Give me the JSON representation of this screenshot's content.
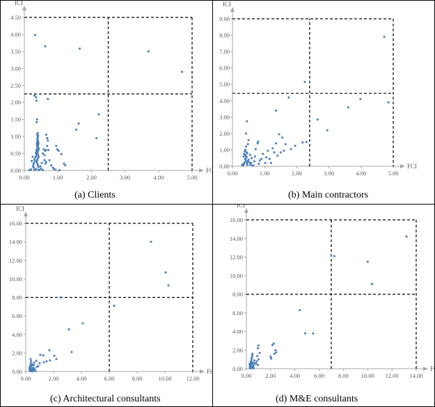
{
  "figure": {
    "captions": [
      "(a)  Clients",
      "(b)  Main contractors",
      "(c) Architectural consultants",
      "(d)  M&E consultants"
    ]
  },
  "chart_data": [
    {
      "type": "scatter",
      "title": "",
      "caption": "(a)  Clients",
      "xlabel": "FCI",
      "ylabel": "ICI",
      "xlim": [
        0,
        5
      ],
      "ylim": [
        0,
        4.5
      ],
      "x_ticks": [
        "0.00",
        "1.00",
        "2.00",
        "3.00",
        "4.00",
        "5.00"
      ],
      "y_ticks": [
        "0.00",
        "0.50",
        "1.00",
        "1.50",
        "2.00",
        "2.50",
        "3.00",
        "3.50",
        "4.00",
        "4.50"
      ],
      "thresholds": {
        "x": 2.5,
        "y": 2.25
      },
      "grid": false,
      "marker_color": "#4a7ebb",
      "points": [
        [
          0.32,
          3.98
        ],
        [
          0.62,
          3.65
        ],
        [
          1.65,
          3.58
        ],
        [
          3.7,
          3.5
        ],
        [
          4.7,
          2.9
        ],
        [
          0.3,
          2.2
        ],
        [
          0.35,
          2.15
        ],
        [
          0.36,
          2.05
        ],
        [
          0.38,
          1.5
        ],
        [
          0.37,
          1.42
        ],
        [
          0.4,
          1.1
        ],
        [
          0.38,
          1.05
        ],
        [
          0.39,
          0.95
        ],
        [
          0.4,
          0.9
        ],
        [
          0.41,
          0.85
        ],
        [
          0.42,
          0.8
        ],
        [
          0.41,
          0.75
        ],
        [
          0.4,
          0.7
        ],
        [
          0.43,
          0.65
        ],
        [
          0.42,
          0.6
        ],
        [
          0.4,
          0.55
        ],
        [
          0.39,
          0.5
        ],
        [
          0.41,
          0.45
        ],
        [
          0.43,
          0.4
        ],
        [
          0.4,
          0.35
        ],
        [
          0.38,
          0.3
        ],
        [
          0.37,
          0.25
        ],
        [
          0.39,
          0.2
        ],
        [
          0.4,
          0.15
        ],
        [
          0.42,
          0.1
        ],
        [
          0.35,
          0.05
        ],
        [
          0.33,
          0.02
        ],
        [
          0.3,
          0.01
        ],
        [
          0.28,
          0.08
        ],
        [
          0.26,
          0.12
        ],
        [
          0.27,
          0.18
        ],
        [
          0.29,
          0.22
        ],
        [
          0.31,
          0.28
        ],
        [
          0.3,
          0.32
        ],
        [
          0.33,
          0.38
        ],
        [
          0.35,
          0.42
        ],
        [
          0.36,
          0.48
        ],
        [
          0.34,
          0.52
        ],
        [
          0.36,
          0.58
        ],
        [
          0.37,
          0.62
        ],
        [
          0.39,
          0.68
        ],
        [
          0.38,
          0.72
        ],
        [
          0.37,
          0.78
        ],
        [
          0.38,
          0.82
        ],
        [
          0.39,
          0.88
        ],
        [
          0.4,
          0.98
        ],
        [
          0.41,
          1.02
        ],
        [
          0.42,
          0.01
        ],
        [
          0.45,
          0.02
        ],
        [
          0.5,
          0.05
        ],
        [
          0.55,
          0.01
        ],
        [
          0.48,
          0.12
        ],
        [
          0.52,
          0.22
        ],
        [
          0.6,
          0.3
        ],
        [
          0.65,
          0.25
        ],
        [
          0.63,
          0.2
        ],
        [
          0.55,
          0.5
        ],
        [
          0.6,
          0.45
        ],
        [
          0.62,
          0.58
        ],
        [
          0.58,
          0.62
        ],
        [
          0.65,
          0.6
        ],
        [
          0.68,
          0.72
        ],
        [
          0.7,
          0.88
        ],
        [
          0.65,
          1.05
        ],
        [
          0.68,
          0.95
        ],
        [
          0.7,
          2.1
        ],
        [
          0.72,
          0.6
        ],
        [
          0.75,
          0.3
        ],
        [
          0.8,
          0.15
        ],
        [
          0.85,
          0.08
        ],
        [
          0.95,
          0.72
        ],
        [
          0.98,
          0.62
        ],
        [
          1.02,
          0.58
        ],
        [
          1.1,
          0.48
        ],
        [
          1.18,
          0.2
        ],
        [
          1.22,
          0.15
        ],
        [
          0.88,
          0.05
        ],
        [
          0.93,
          0.02
        ],
        [
          1.05,
          0.01
        ],
        [
          1.55,
          1.2
        ],
        [
          1.62,
          1.38
        ],
        [
          2.15,
          0.95
        ],
        [
          2.22,
          1.65
        ],
        [
          0.15,
          0.01
        ],
        [
          0.2,
          0.03
        ],
        [
          0.22,
          0.28
        ],
        [
          0.25,
          0.4
        ]
      ]
    },
    {
      "type": "scatter",
      "title": "",
      "caption": "(b)  Main contractors",
      "xlabel": "FCI",
      "ylabel": "ICI",
      "xlim": [
        0,
        5
      ],
      "ylim": [
        0,
        9
      ],
      "x_ticks": [
        "0.00",
        "1.00",
        "2.00",
        "3.00",
        "4.00",
        "5.00"
      ],
      "y_ticks": [
        "0.00",
        "1.00",
        "2.00",
        "3.00",
        "4.00",
        "5.00",
        "6.00",
        "7.00",
        "8.00",
        "9.00"
      ],
      "thresholds": {
        "x": 2.4,
        "y": 4.45
      },
      "grid": false,
      "marker_color": "#4a7ebb",
      "points": [
        [
          4.72,
          7.9
        ],
        [
          2.25,
          5.15
        ],
        [
          4.85,
          3.9
        ],
        [
          3.98,
          4.1
        ],
        [
          3.6,
          3.6
        ],
        [
          2.65,
          2.85
        ],
        [
          2.95,
          2.2
        ],
        [
          1.75,
          4.2
        ],
        [
          1.55,
          1.75
        ],
        [
          1.65,
          1.35
        ],
        [
          1.82,
          1.05
        ],
        [
          1.95,
          1.25
        ],
        [
          2.18,
          1.45
        ],
        [
          2.3,
          1.48
        ],
        [
          1.35,
          3.4
        ],
        [
          1.45,
          1.95
        ],
        [
          1.35,
          1.4
        ],
        [
          1.25,
          1.1
        ],
        [
          1.3,
          0.85
        ],
        [
          1.4,
          0.65
        ],
        [
          1.15,
          0.45
        ],
        [
          1.2,
          0.2
        ],
        [
          1.05,
          0.55
        ],
        [
          1.1,
          0.95
        ],
        [
          0.95,
          0.75
        ],
        [
          0.9,
          0.45
        ],
        [
          0.85,
          0.35
        ],
        [
          0.82,
          0.15
        ],
        [
          0.78,
          1.4
        ],
        [
          0.8,
          1.5
        ],
        [
          0.72,
          1.05
        ],
        [
          0.7,
          0.6
        ],
        [
          0.68,
          0.3
        ],
        [
          0.65,
          0.05
        ],
        [
          0.45,
          2.75
        ],
        [
          0.42,
          2.0
        ],
        [
          0.5,
          1.6
        ],
        [
          0.48,
          1.35
        ],
        [
          0.42,
          1.2
        ],
        [
          0.4,
          1.0
        ],
        [
          0.38,
          0.9
        ],
        [
          0.36,
          0.75
        ],
        [
          0.35,
          0.6
        ],
        [
          0.4,
          0.45
        ],
        [
          0.42,
          0.35
        ],
        [
          0.38,
          0.25
        ],
        [
          0.36,
          0.15
        ],
        [
          0.34,
          0.08
        ],
        [
          0.32,
          0.05
        ],
        [
          0.3,
          0.1
        ],
        [
          0.45,
          0.2
        ],
        [
          0.47,
          0.3
        ],
        [
          0.44,
          0.55
        ],
        [
          0.46,
          0.8
        ],
        [
          0.5,
          0.4
        ],
        [
          0.52,
          0.25
        ],
        [
          0.55,
          0.1
        ],
        [
          0.55,
          0.7
        ],
        [
          0.6,
          0.5
        ],
        [
          0.58,
          0.2
        ],
        [
          0.62,
          0.05
        ],
        [
          0.42,
          0.6
        ],
        [
          0.4,
          0.7
        ],
        [
          0.44,
          0.85
        ],
        [
          0.46,
          0.1
        ],
        [
          1.02,
          0.2
        ],
        [
          1.5,
          0.85
        ],
        [
          1.6,
          0.95
        ]
      ]
    },
    {
      "type": "scatter",
      "title": "",
      "caption": "(c) Architectural consultants",
      "xlabel": "FCI",
      "ylabel": "ICI",
      "xlim": [
        0,
        12
      ],
      "ylim": [
        0,
        16
      ],
      "x_ticks": [
        "0.00",
        "2.00",
        "4.00",
        "6.00",
        "8.00",
        "10.00",
        "12.00"
      ],
      "y_ticks": [
        "0.00",
        "2.00",
        "4.00",
        "6.00",
        "8.00",
        "10.00",
        "12.00",
        "14.00",
        "16.00"
      ],
      "thresholds": {
        "x": 6.0,
        "y": 8.0
      },
      "grid": false,
      "marker_color": "#4a7ebb",
      "points": [
        [
          9.0,
          14.0
        ],
        [
          10.05,
          10.7
        ],
        [
          10.25,
          9.3
        ],
        [
          6.35,
          7.1
        ],
        [
          2.5,
          8.0
        ],
        [
          4.1,
          5.2
        ],
        [
          3.1,
          4.55
        ],
        [
          3.3,
          2.1
        ],
        [
          1.7,
          2.3
        ],
        [
          2.05,
          1.7
        ],
        [
          2.2,
          1.35
        ],
        [
          1.75,
          1.2
        ],
        [
          1.5,
          1.1
        ],
        [
          1.25,
          1.75
        ],
        [
          1.3,
          1.0
        ],
        [
          1.05,
          1.8
        ],
        [
          1.0,
          0.9
        ],
        [
          0.9,
          0.6
        ],
        [
          0.8,
          0.5
        ],
        [
          0.75,
          1.15
        ],
        [
          0.6,
          0.95
        ],
        [
          0.55,
          0.4
        ],
        [
          0.5,
          0.25
        ],
        [
          0.45,
          0.15
        ],
        [
          0.4,
          0.05
        ],
        [
          0.35,
          1.35
        ],
        [
          0.38,
          1.1
        ],
        [
          0.36,
          0.85
        ],
        [
          0.34,
          0.7
        ],
        [
          0.32,
          0.55
        ],
        [
          0.3,
          0.45
        ],
        [
          0.33,
          0.3
        ],
        [
          0.35,
          0.2
        ],
        [
          0.31,
          0.1
        ],
        [
          0.29,
          0.05
        ],
        [
          0.42,
          0.6
        ],
        [
          0.44,
          0.35
        ],
        [
          0.46,
          0.75
        ],
        [
          0.48,
          0.02
        ],
        [
          0.52,
          0.12
        ],
        [
          0.58,
          0.7
        ],
        [
          0.62,
          0.3
        ],
        [
          0.66,
          0.15
        ],
        [
          0.7,
          0.05
        ],
        [
          0.28,
          0.2
        ],
        [
          0.27,
          0.4
        ]
      ]
    },
    {
      "type": "scatter",
      "title": "",
      "caption": "(d)  M&E consultants",
      "xlabel": "FCI",
      "ylabel": "ICI",
      "xlim": [
        0,
        14
      ],
      "ylim": [
        0,
        16
      ],
      "x_ticks": [
        "0.00",
        "2.00",
        "4.00",
        "6.00",
        "8.00",
        "10.00",
        "12.00",
        "14.00"
      ],
      "y_ticks": [
        "0.00",
        "2.00",
        "4.00",
        "6.00",
        "8.00",
        "10.00",
        "12.00",
        "14.00",
        "16.00"
      ],
      "thresholds": {
        "x": 7.0,
        "y": 8.0
      },
      "grid": false,
      "marker_color": "#4a7ebb",
      "points": [
        [
          13.2,
          14.2
        ],
        [
          7.25,
          12.1
        ],
        [
          10.0,
          11.5
        ],
        [
          10.35,
          9.1
        ],
        [
          4.4,
          6.3
        ],
        [
          4.85,
          3.8
        ],
        [
          5.5,
          3.8
        ],
        [
          2.25,
          2.7
        ],
        [
          2.15,
          2.55
        ],
        [
          2.4,
          2.0
        ],
        [
          2.45,
          1.75
        ],
        [
          2.3,
          1.6
        ],
        [
          2.0,
          1.3
        ],
        [
          2.05,
          1.1
        ],
        [
          1.0,
          2.5
        ],
        [
          0.95,
          2.2
        ],
        [
          1.1,
          1.7
        ],
        [
          0.9,
          1.35
        ],
        [
          1.0,
          1.0
        ],
        [
          0.85,
          0.8
        ],
        [
          0.8,
          0.55
        ],
        [
          0.95,
          0.4
        ],
        [
          0.65,
          0.9
        ],
        [
          0.7,
          0.6
        ],
        [
          0.6,
          0.35
        ],
        [
          0.55,
          0.2
        ],
        [
          0.5,
          1.6
        ],
        [
          0.48,
          1.4
        ],
        [
          0.45,
          1.2
        ],
        [
          0.42,
          1.0
        ],
        [
          0.4,
          0.8
        ],
        [
          0.38,
          0.6
        ],
        [
          0.36,
          0.45
        ],
        [
          0.34,
          0.3
        ],
        [
          0.32,
          0.15
        ],
        [
          0.3,
          0.05
        ],
        [
          0.28,
          0.25
        ],
        [
          0.26,
          0.5
        ],
        [
          0.35,
          0.7
        ],
        [
          0.4,
          0.35
        ],
        [
          0.45,
          0.1
        ],
        [
          0.5,
          0.5
        ],
        [
          0.55,
          0.65
        ],
        [
          0.6,
          0.05
        ]
      ]
    }
  ]
}
